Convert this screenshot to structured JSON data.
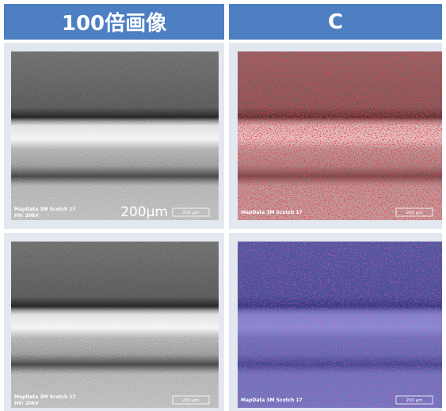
{
  "header": {
    "left": "100倍画像",
    "right": "C"
  },
  "panels": [
    {
      "label": "MapData 3M Scotch 17",
      "hv": "HV: 20kV",
      "big_scale": "200μm",
      "scale": "200 μm"
    },
    {
      "label": "MapData 3M Scotch 17",
      "scale": "200 μm"
    },
    {
      "label": "MapData 3M Scotch 17",
      "hv": "HV: 20kV",
      "scale": "200 μm"
    },
    {
      "label": "MapData 3M Scotch 17",
      "scale": "200 μm"
    }
  ]
}
